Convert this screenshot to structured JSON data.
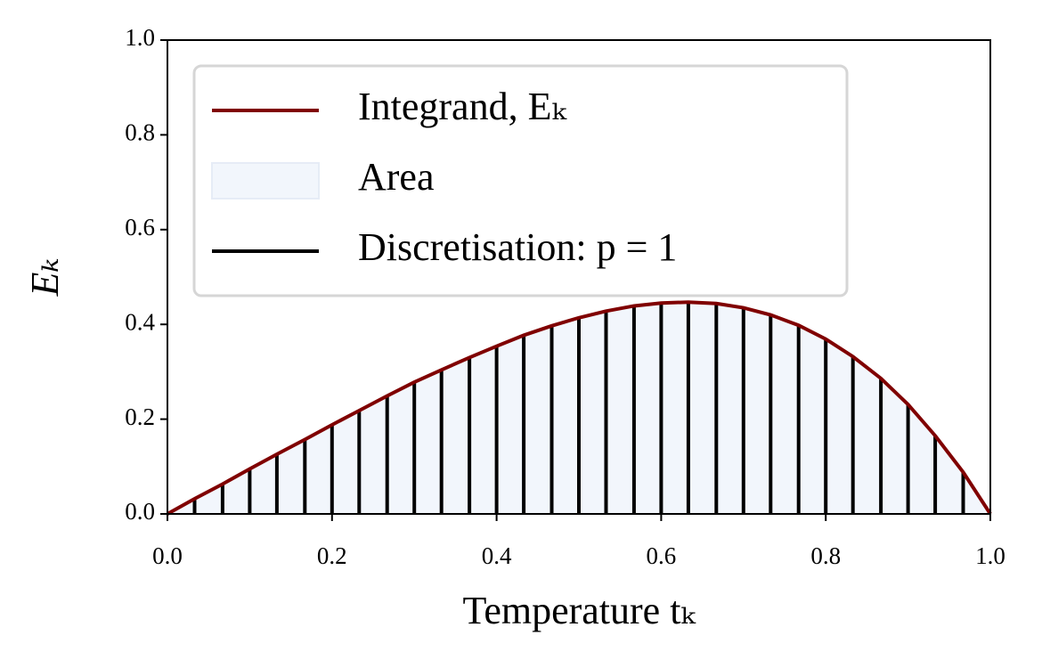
{
  "chart_data": {
    "type": "line",
    "xlabel": "Temperature tₖ",
    "ylabel": "Eₖ",
    "xlim": [
      0,
      1
    ],
    "ylim": [
      0,
      1
    ],
    "xticks": [
      {
        "value": 0,
        "label": "0.0"
      },
      0.2,
      0.4,
      0.6,
      0.8,
      {
        "value": 1,
        "label": "1.0"
      }
    ],
    "yticks": [
      {
        "value": 0,
        "label": "0.0"
      },
      0.2,
      0.4,
      0.6,
      0.8,
      {
        "value": 1,
        "label": "1.0"
      }
    ],
    "legend": "upper left",
    "series": [
      {
        "name": "Integrand, Eₖ",
        "color": "#800000",
        "x": [
          0,
          0.033,
          0.067,
          0.1,
          0.133,
          0.167,
          0.2,
          0.233,
          0.267,
          0.3,
          0.333,
          0.367,
          0.4,
          0.433,
          0.467,
          0.5,
          0.533,
          0.567,
          0.6,
          0.633,
          0.667,
          0.7,
          0.733,
          0.767,
          0.8,
          0.833,
          0.867,
          0.9,
          0.933,
          0.967,
          1
        ],
        "values": [
          0,
          0.032,
          0.063,
          0.095,
          0.126,
          0.157,
          0.188,
          0.218,
          0.249,
          0.278,
          0.304,
          0.33,
          0.354,
          0.377,
          0.397,
          0.414,
          0.428,
          0.439,
          0.445,
          0.447,
          0.444,
          0.435,
          0.42,
          0.398,
          0.369,
          0.332,
          0.286,
          0.231,
          0.165,
          0.088,
          0
        ]
      },
      {
        "name": "Area",
        "color": "#f2f6fc"
      },
      {
        "name": "Discretisation: p = 1",
        "color": "#000000",
        "x": [
          0.033,
          0.067,
          0.1,
          0.133,
          0.167,
          0.2,
          0.233,
          0.267,
          0.3,
          0.333,
          0.367,
          0.4,
          0.433,
          0.467,
          0.5,
          0.533,
          0.567,
          0.6,
          0.633,
          0.667,
          0.7,
          0.733,
          0.767,
          0.8,
          0.833,
          0.867,
          0.9,
          0.933,
          0.967
        ],
        "values": [
          0.032,
          0.063,
          0.095,
          0.126,
          0.157,
          0.188,
          0.218,
          0.249,
          0.278,
          0.304,
          0.33,
          0.354,
          0.377,
          0.397,
          0.414,
          0.428,
          0.439,
          0.445,
          0.447,
          0.444,
          0.435,
          0.42,
          0.398,
          0.369,
          0.332,
          0.286,
          0.231,
          0.165,
          0.088
        ]
      }
    ]
  }
}
